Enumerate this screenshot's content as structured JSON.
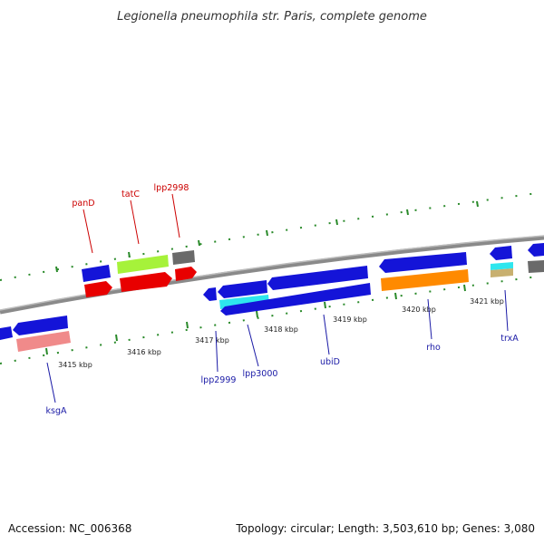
{
  "title": "Legionella pneumophila str. Paris, complete genome",
  "footer": {
    "accession": "Accession: NC_006368",
    "summary": "Topology: circular; Length: 3,503,610 bp; Genes: 3,080"
  },
  "colors": {
    "forward_label": "#cc0000",
    "reverse_label": "#1a1aa6",
    "backbone": "#8a8a8a",
    "ticks": "#2a8a2a"
  },
  "ticks": [
    {
      "label": "3415 kbp"
    },
    {
      "label": "3416 kbp"
    },
    {
      "label": "3417 kbp"
    },
    {
      "label": "3418 kbp"
    },
    {
      "label": "3419 kbp"
    },
    {
      "label": "3420 kbp"
    },
    {
      "label": "3421 kbp"
    }
  ],
  "gene_labels": [
    {
      "id": "panD",
      "text": "panD",
      "strand": "forward"
    },
    {
      "id": "tatC",
      "text": "tatC",
      "strand": "forward"
    },
    {
      "id": "lpp2998",
      "text": "lpp2998",
      "strand": "forward"
    },
    {
      "id": "ksgA",
      "text": "ksgA",
      "strand": "reverse"
    },
    {
      "id": "lpp2999",
      "text": "lpp2999",
      "strand": "reverse"
    },
    {
      "id": "lpp3000",
      "text": "lpp3000",
      "strand": "reverse"
    },
    {
      "id": "ubiD",
      "text": "ubiD",
      "strand": "reverse"
    },
    {
      "id": "rho",
      "text": "rho",
      "strand": "reverse"
    },
    {
      "id": "trxA",
      "text": "trxA",
      "strand": "reverse"
    }
  ]
}
